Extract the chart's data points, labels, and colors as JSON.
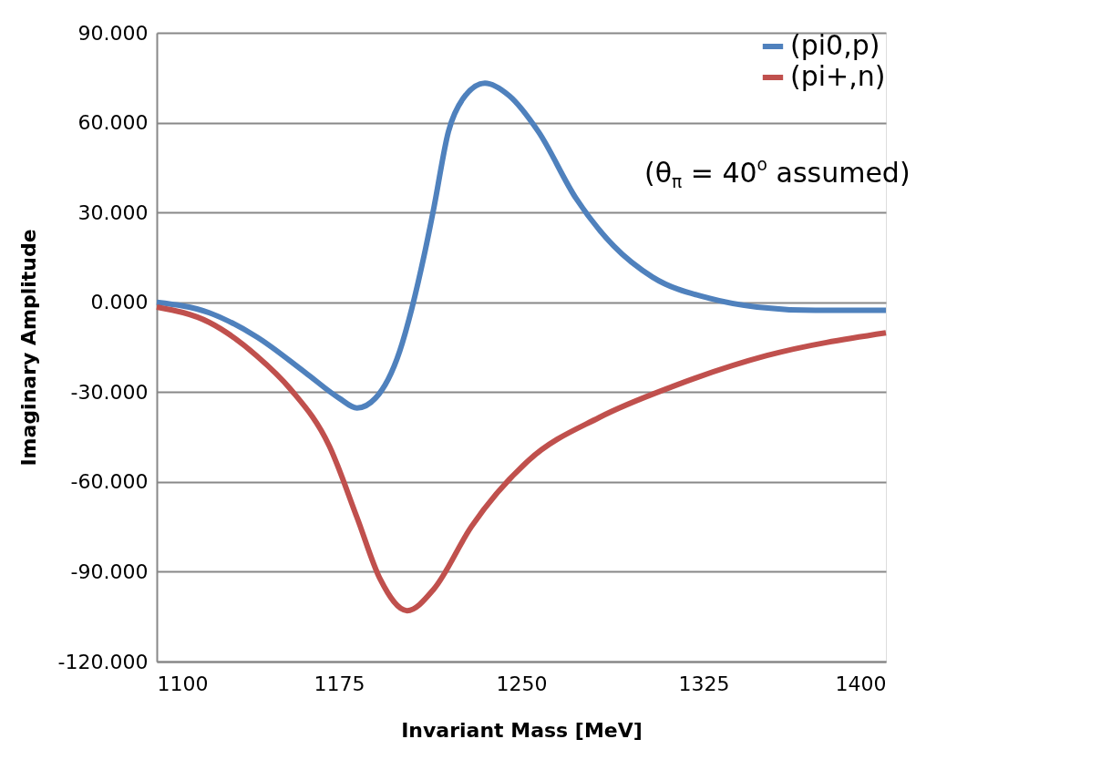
{
  "chart_data": {
    "type": "line",
    "xlabel": "Invariant Mass [MeV]",
    "ylabel": "Imaginary Amplitude",
    "xlim": [
      1100,
      1400
    ],
    "xticks": [
      1100,
      1175,
      1250,
      1325,
      1400
    ],
    "ylim": [
      -120,
      90
    ],
    "yticks": [
      {
        "value": -120,
        "label": "-120.000"
      },
      {
        "value": -90,
        "label": "-90.000"
      },
      {
        "value": -60,
        "label": "-60.000"
      },
      {
        "value": -30,
        "label": "-30.000"
      },
      {
        "value": 0,
        "label": "0.000"
      },
      {
        "value": 30,
        "label": "30.000"
      },
      {
        "value": 60,
        "label": "60.000"
      },
      {
        "value": 90,
        "label": "90.000"
      }
    ],
    "grid": "y",
    "legend": "top right",
    "line_style": "solid",
    "marker": "none",
    "annotations": [
      "(θ$_{π}$ = 40$^{o}$ assumed)"
    ],
    "series": [
      {
        "name": "(pi0,p)",
        "color": "#4f81bd",
        "x": [
          1100,
          1121.6,
          1141,
          1161,
          1175,
          1182.4,
          1190,
          1200,
          1205,
          1210,
          1214,
          1220,
          1226,
          1235,
          1245,
          1257,
          1272.5,
          1288,
          1304,
          1327.5,
          1347,
          1371,
          1400
        ],
        "values": [
          0,
          -3.5,
          -11.5,
          -23.4,
          -32,
          -35.3,
          -32,
          -16.2,
          -1.9,
          15.6,
          31.5,
          57,
          68,
          73.2,
          69,
          57,
          34.7,
          18.8,
          8.4,
          1.3,
          -1.6,
          -2.7,
          -2.7
        ]
      },
      {
        "name": "(pi+,n)",
        "color": "#c0504d",
        "x": [
          1100,
          1121.6,
          1141,
          1155,
          1171,
          1182.4,
          1192,
          1203,
          1214,
          1229.4,
          1253,
          1282,
          1312,
          1351,
          1400
        ],
        "values": [
          -1.6,
          -6.7,
          -17.8,
          -29,
          -48,
          -71.9,
          -92.6,
          -103,
          -95.8,
          -75,
          -52.8,
          -38.5,
          -28.2,
          -17.8,
          -10.2
        ]
      }
    ]
  }
}
